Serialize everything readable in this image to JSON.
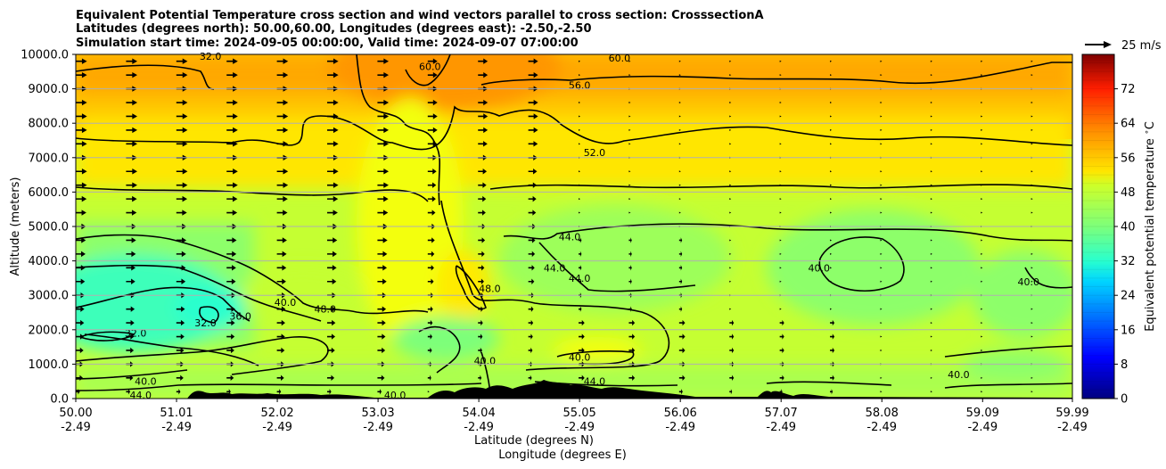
{
  "chart_data": {
    "type": "heatmap",
    "title_lines": [
      "Equivalent Potential Temperature cross section and wind vectors parallel to cross section: CrosssectionA",
      "Latitudes (degrees north): 50.00,60.00, Longitudes (degrees east): -2.50,-2.50",
      "Simulation start time: 2024-09-05 00:00:00, Valid time: 2024-09-07 07:00:00"
    ],
    "ylabel": "Altitude (meters)",
    "xlabel_lat": "Latitude (degrees N)",
    "xlabel_lon": "Longitude (degrees E)",
    "x_ticks": [
      {
        "lat": "50.00",
        "lon": "-2.49"
      },
      {
        "lat": "51.01",
        "lon": "-2.49"
      },
      {
        "lat": "52.02",
        "lon": "-2.49"
      },
      {
        "lat": "53.03",
        "lon": "-2.49"
      },
      {
        "lat": "54.04",
        "lon": "-2.49"
      },
      {
        "lat": "55.05",
        "lon": "-2.49"
      },
      {
        "lat": "56.06",
        "lon": "-2.49"
      },
      {
        "lat": "57.07",
        "lon": "-2.49"
      },
      {
        "lat": "58.08",
        "lon": "-2.49"
      },
      {
        "lat": "59.09",
        "lon": "-2.49"
      },
      {
        "lat": "59.99",
        "lon": "-2.49"
      }
    ],
    "xlim": [
      50.0,
      59.99
    ],
    "y_ticks": [
      "0.0",
      "1000.0",
      "2000.0",
      "3000.0",
      "4000.0",
      "5000.0",
      "6000.0",
      "7000.0",
      "8000.0",
      "9000.0",
      "10000.0"
    ],
    "ylim": [
      0,
      10000
    ],
    "grid": "horizontal",
    "colorbar": {
      "label": "Equivalent potential temperature $^\\circ$C",
      "ticks": [
        "0",
        "8",
        "16",
        "24",
        "32",
        "40",
        "48",
        "56",
        "64",
        "72"
      ],
      "range": [
        0,
        80
      ]
    },
    "quiver_key": {
      "label": "25 m/s",
      "speed": 25
    },
    "contour_labels": [
      {
        "text": "32.0",
        "lat": 51.35,
        "alt": 9950
      },
      {
        "text": "60.0",
        "lat": 53.55,
        "alt": 9650
      },
      {
        "text": "60.0",
        "lat": 55.45,
        "alt": 9900
      },
      {
        "text": "56.0",
        "lat": 55.05,
        "alt": 9100
      },
      {
        "text": "52.0",
        "lat": 55.2,
        "alt": 7150
      },
      {
        "text": "44.0",
        "lat": 54.95,
        "alt": 4700
      },
      {
        "text": "44.0",
        "lat": 54.8,
        "alt": 3800
      },
      {
        "text": "44.0",
        "lat": 55.05,
        "alt": 3500
      },
      {
        "text": "40.0",
        "lat": 57.45,
        "alt": 3800
      },
      {
        "text": "40.0",
        "lat": 59.55,
        "alt": 3400
      },
      {
        "text": "48.0",
        "lat": 54.15,
        "alt": 3200
      },
      {
        "text": "40.0",
        "lat": 52.1,
        "alt": 2800
      },
      {
        "text": "36.0",
        "lat": 51.65,
        "alt": 2400
      },
      {
        "text": "48.0",
        "lat": 52.5,
        "alt": 2600
      },
      {
        "text": "32.0",
        "lat": 51.3,
        "alt": 2200
      },
      {
        "text": "32.0",
        "lat": 50.6,
        "alt": 1900
      },
      {
        "text": "40.0",
        "lat": 54.1,
        "alt": 1100
      },
      {
        "text": "40.0",
        "lat": 55.05,
        "alt": 1200
      },
      {
        "text": "44.0",
        "lat": 55.2,
        "alt": 500
      },
      {
        "text": "40.0",
        "lat": 53.2,
        "alt": 100
      },
      {
        "text": "40.0",
        "lat": 58.85,
        "alt": 700
      },
      {
        "text": "44.0",
        "lat": 50.65,
        "alt": 100
      },
      {
        "text": "40.0",
        "lat": 50.7,
        "alt": 500
      }
    ],
    "wind_note": "Arrows point along the section (northward); strongest (about 12-15 m/s) above 3000 m at latitudes 50-53, weaker elsewhere, near-calm at high altitude north of 55N."
  }
}
